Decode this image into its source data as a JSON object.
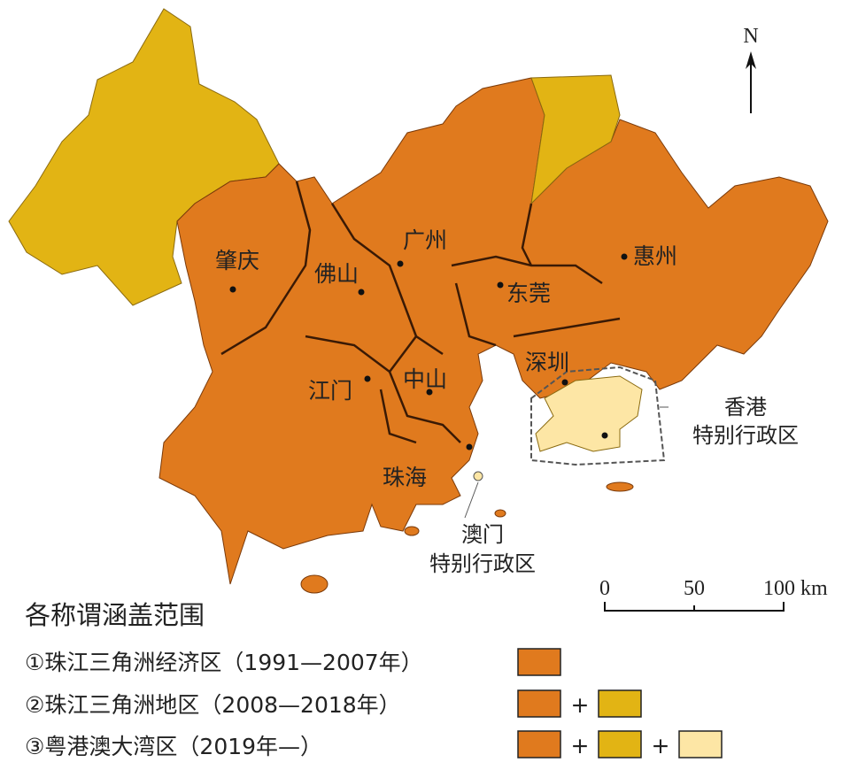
{
  "north_arrow": "N",
  "cities": [
    {
      "label": "肇庆"
    },
    {
      "label": "佛山"
    },
    {
      "label": "广州"
    },
    {
      "label": "东莞"
    },
    {
      "label": "惠州"
    },
    {
      "label": "深圳"
    },
    {
      "label": "江门"
    },
    {
      "label": "中山"
    },
    {
      "label": "珠海"
    }
  ],
  "special_regions": [
    {
      "label_lines": [
        "香港",
        "特别行政区"
      ]
    },
    {
      "label_lines": [
        "澳门",
        "特别行政区"
      ]
    }
  ],
  "scale_bar": {
    "labels": [
      "0",
      "50",
      "100 km"
    ]
  },
  "legend": {
    "title": "各称谓涵盖范围",
    "separator": "+",
    "items": [
      {
        "label": "①珠江三角洲经济区（1991—2007年）"
      },
      {
        "label": "②珠江三角洲地区（2008—2018年）"
      },
      {
        "label": "③粤港澳大湾区（2019年—）"
      }
    ]
  }
}
